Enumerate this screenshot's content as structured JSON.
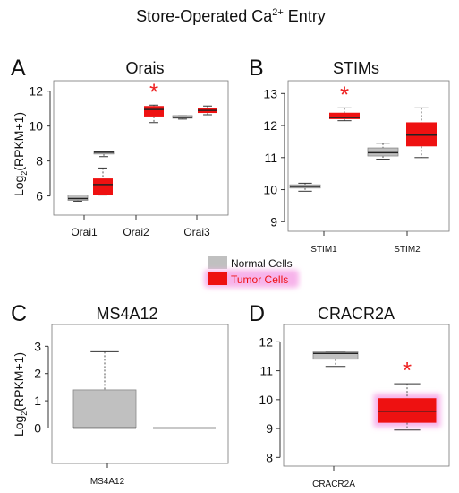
{
  "figure": {
    "title_main": "Store-Operated Ca",
    "title_sup": "2+",
    "title_tail": " Entry"
  },
  "colors": {
    "normal": "#c0c0c0",
    "tumor": "#ee1111",
    "tumor_glow": "#f7b3ea",
    "star": "#ee2222",
    "axis": "#777777",
    "text": "#111111"
  },
  "legend": {
    "normal_label": "Normal Cells",
    "tumor_label": "Tumor Cells"
  },
  "panels": [
    {
      "letter": "A",
      "title": "Orais",
      "ylabel_main": "Log",
      "ylabel_sub": "2",
      "ylabel_tail": "(RPKM+1)",
      "yticks": [
        "6",
        "8",
        "10",
        "12"
      ],
      "categories": [
        "Orai1",
        "Orai2",
        "Orai3"
      ],
      "star_on": "Orai2"
    },
    {
      "letter": "B",
      "title": "STIMs",
      "yticks": [
        "9",
        "10",
        "11",
        "12",
        "13"
      ],
      "categories": [
        "STIM1",
        "STIM2"
      ],
      "star_on": "STIM1"
    },
    {
      "letter": "C",
      "title": "MS4A12",
      "ylabel_main": "Log",
      "ylabel_sub": "2",
      "ylabel_tail": "(RPKM+1)",
      "yticks": [
        "0",
        "1",
        "2",
        "3"
      ],
      "categories": [
        "MS4A12"
      ]
    },
    {
      "letter": "D",
      "title": "CRACR2A",
      "yticks": [
        "8",
        "9",
        "10",
        "11",
        "12"
      ],
      "categories": [
        "CRACR2A"
      ],
      "star_on": "CRACR2A"
    }
  ],
  "chart_data": [
    {
      "type": "box",
      "title": "Orais",
      "ylabel": "Log2(RPKM+1)",
      "ylim": [
        4.9,
        12.6
      ],
      "categories": [
        "Orai1",
        "Orai2",
        "Orai3"
      ],
      "series": [
        {
          "name": "Normal Cells",
          "boxes": [
            {
              "category": "Orai1",
              "min": 5.7,
              "q1": 5.75,
              "median": 5.85,
              "q3": 6.05,
              "max": 6.05
            },
            {
              "category": "Orai2",
              "min": 8.25,
              "q1": 8.4,
              "median": 8.5,
              "q3": 8.55,
              "max": 8.55
            },
            {
              "category": "Orai3",
              "min": 10.4,
              "q1": 10.45,
              "median": 10.5,
              "q3": 10.6,
              "max": 10.6
            }
          ]
        },
        {
          "name": "Tumor Cells",
          "boxes": [
            {
              "category": "Orai1",
              "min": 6.05,
              "q1": 6.05,
              "median": 6.65,
              "q3": 7.0,
              "max": 7.6
            },
            {
              "category": "Orai2",
              "min": 10.2,
              "q1": 10.55,
              "median": 10.95,
              "q3": 11.15,
              "max": 11.2
            },
            {
              "category": "Orai3",
              "min": 10.65,
              "q1": 10.75,
              "median": 10.9,
              "q3": 11.05,
              "max": 11.15
            }
          ]
        }
      ],
      "significant": [
        "Orai2"
      ]
    },
    {
      "type": "box",
      "title": "STIMs",
      "ylim": [
        8.7,
        13.4
      ],
      "categories": [
        "STIM1",
        "STIM2"
      ],
      "series": [
        {
          "name": "Normal Cells",
          "boxes": [
            {
              "category": "STIM1",
              "min": 9.95,
              "q1": 10.05,
              "median": 10.1,
              "q3": 10.15,
              "max": 10.2
            },
            {
              "category": "STIM2",
              "min": 10.95,
              "q1": 11.05,
              "median": 11.15,
              "q3": 11.3,
              "max": 11.45
            }
          ]
        },
        {
          "name": "Tumor Cells",
          "boxes": [
            {
              "category": "STIM1",
              "min": 12.15,
              "q1": 12.2,
              "median": 12.25,
              "q3": 12.4,
              "max": 12.55
            },
            {
              "category": "STIM2",
              "min": 11.0,
              "q1": 11.35,
              "median": 11.7,
              "q3": 12.1,
              "max": 12.55
            }
          ]
        }
      ],
      "significant": [
        "STIM1"
      ]
    },
    {
      "type": "box",
      "title": "MS4A12",
      "ylabel": "Log2(RPKM+1)",
      "ylim": [
        -1.3,
        3.8
      ],
      "categories": [
        "MS4A12"
      ],
      "series": [
        {
          "name": "Normal Cells",
          "boxes": [
            {
              "category": "MS4A12",
              "min": 0,
              "q1": 0,
              "median": 0,
              "q3": 1.4,
              "max": 2.8
            }
          ]
        },
        {
          "name": "Tumor Cells",
          "boxes": [
            {
              "category": "MS4A12",
              "min": 0,
              "q1": 0,
              "median": 0,
              "q3": 0,
              "max": 0
            }
          ]
        }
      ]
    },
    {
      "type": "box",
      "title": "CRACR2A",
      "ylim": [
        7.7,
        12.6
      ],
      "categories": [
        "CRACR2A"
      ],
      "series": [
        {
          "name": "Normal Cells",
          "boxes": [
            {
              "category": "CRACR2A",
              "min": 11.15,
              "q1": 11.4,
              "median": 11.6,
              "q3": 11.65,
              "max": 11.65
            }
          ]
        },
        {
          "name": "Tumor Cells",
          "boxes": [
            {
              "category": "CRACR2A",
              "min": 8.95,
              "q1": 9.2,
              "median": 9.6,
              "q3": 10.05,
              "max": 10.55
            }
          ]
        }
      ],
      "significant": [
        "CRACR2A"
      ]
    }
  ]
}
